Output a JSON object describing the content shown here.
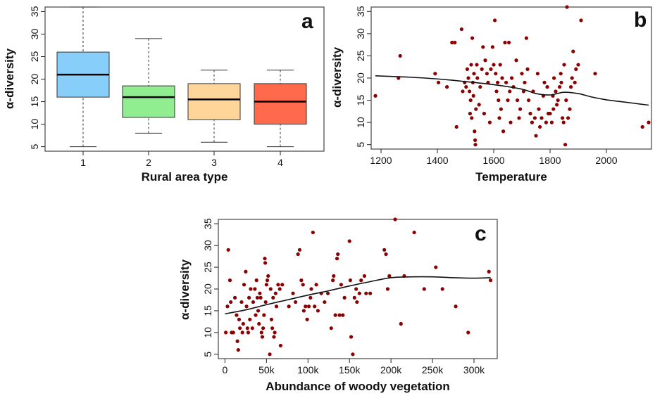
{
  "colors": {
    "point": "#8B0000",
    "line": "#111111",
    "box1": "#87CEFA",
    "box2": "#90EE90",
    "box3": "#FFD59A",
    "box4": "#FF6A4D"
  },
  "chart_data": [
    {
      "panel_label": "a",
      "type": "boxplot",
      "xlabel": "Rural area type",
      "ylabel": "α-diversity",
      "ylim": [
        4,
        36
      ],
      "yticks": [
        5,
        10,
        15,
        20,
        25,
        30,
        35
      ],
      "categories": [
        "1",
        "2",
        "3",
        "4"
      ],
      "boxes": [
        {
          "category": "1",
          "min": 5,
          "q1": 16,
          "median": 21,
          "q3": 26,
          "max": 36
        },
        {
          "category": "2",
          "min": 8,
          "q1": 11.5,
          "median": 16,
          "q3": 18.5,
          "max": 29
        },
        {
          "category": "3",
          "min": 6,
          "q1": 11,
          "median": 15.5,
          "q3": 19,
          "max": 22
        },
        {
          "category": "4",
          "min": 5,
          "q1": 10,
          "median": 15,
          "q3": 19,
          "max": 22
        }
      ]
    },
    {
      "panel_label": "b",
      "type": "scatter",
      "xlabel": "Temperature",
      "ylabel": "α-diversity",
      "xlim": [
        1165,
        2160
      ],
      "ylim": [
        4,
        36
      ],
      "xticks": [
        1200,
        1400,
        1600,
        1800,
        2000
      ],
      "yticks": [
        5,
        10,
        15,
        20,
        25,
        30,
        35
      ],
      "points": [
        [
          1180,
          16
        ],
        [
          1262,
          20
        ],
        [
          1268,
          25
        ],
        [
          1392,
          21
        ],
        [
          1404,
          19
        ],
        [
          1434,
          18
        ],
        [
          1452,
          28
        ],
        [
          1462,
          28
        ],
        [
          1468,
          9
        ],
        [
          1486,
          31
        ],
        [
          1490,
          17
        ],
        [
          1497,
          19
        ],
        [
          1502,
          18
        ],
        [
          1506,
          22
        ],
        [
          1510,
          20
        ],
        [
          1514,
          17
        ],
        [
          1516,
          12
        ],
        [
          1518,
          15
        ],
        [
          1520,
          23
        ],
        [
          1522,
          11
        ],
        [
          1524,
          29
        ],
        [
          1526,
          19
        ],
        [
          1528,
          16
        ],
        [
          1530,
          21
        ],
        [
          1532,
          8
        ],
        [
          1534,
          6
        ],
        [
          1535,
          5
        ],
        [
          1537,
          13
        ],
        [
          1540,
          23
        ],
        [
          1542,
          20
        ],
        [
          1548,
          14
        ],
        [
          1552,
          18
        ],
        [
          1558,
          22
        ],
        [
          1562,
          27
        ],
        [
          1566,
          12
        ],
        [
          1570,
          24
        ],
        [
          1576,
          21
        ],
        [
          1580,
          19
        ],
        [
          1586,
          10
        ],
        [
          1590,
          22
        ],
        [
          1596,
          27
        ],
        [
          1600,
          23
        ],
        [
          1604,
          33
        ],
        [
          1607,
          21
        ],
        [
          1610,
          17
        ],
        [
          1614,
          19
        ],
        [
          1617,
          15
        ],
        [
          1620,
          11
        ],
        [
          1623,
          23
        ],
        [
          1626,
          13
        ],
        [
          1630,
          20
        ],
        [
          1634,
          8
        ],
        [
          1640,
          28
        ],
        [
          1644,
          19
        ],
        [
          1650,
          15
        ],
        [
          1654,
          28
        ],
        [
          1657,
          17
        ],
        [
          1660,
          10
        ],
        [
          1664,
          20
        ],
        [
          1670,
          18
        ],
        [
          1680,
          24
        ],
        [
          1684,
          15
        ],
        [
          1690,
          11
        ],
        [
          1694,
          13
        ],
        [
          1700,
          21
        ],
        [
          1706,
          17
        ],
        [
          1710,
          19
        ],
        [
          1716,
          29
        ],
        [
          1720,
          22
        ],
        [
          1724,
          15
        ],
        [
          1730,
          12
        ],
        [
          1736,
          10
        ],
        [
          1740,
          17
        ],
        [
          1746,
          11
        ],
        [
          1750,
          7
        ],
        [
          1756,
          21
        ],
        [
          1760,
          13
        ],
        [
          1764,
          9
        ],
        [
          1770,
          11
        ],
        [
          1776,
          16
        ],
        [
          1780,
          19
        ],
        [
          1786,
          10
        ],
        [
          1790,
          18
        ],
        [
          1794,
          12
        ],
        [
          1800,
          12
        ],
        [
          1806,
          10
        ],
        [
          1810,
          16
        ],
        [
          1812,
          13
        ],
        [
          1814,
          20
        ],
        [
          1820,
          17
        ],
        [
          1824,
          14
        ],
        [
          1828,
          15
        ],
        [
          1834,
          18
        ],
        [
          1838,
          21
        ],
        [
          1840,
          19
        ],
        [
          1844,
          11
        ],
        [
          1848,
          10
        ],
        [
          1850,
          23
        ],
        [
          1854,
          5
        ],
        [
          1857,
          15
        ],
        [
          1860,
          36
        ],
        [
          1864,
          11
        ],
        [
          1870,
          13
        ],
        [
          1874,
          18
        ],
        [
          1878,
          20
        ],
        [
          1882,
          26
        ],
        [
          1888,
          19
        ],
        [
          1892,
          22
        ],
        [
          1900,
          23
        ],
        [
          1910,
          33
        ],
        [
          1960,
          21
        ],
        [
          2128,
          9
        ],
        [
          2150,
          10
        ]
      ],
      "smooth": {
        "x": [
          1180,
          1300,
          1400,
          1500,
          1600,
          1700,
          1750,
          1800,
          1850,
          1900,
          1950,
          2000,
          2050,
          2100,
          2150
        ],
        "y": [
          20.5,
          20.2,
          19.8,
          19.2,
          18.5,
          17.5,
          16.5,
          16.2,
          16.8,
          16.5,
          15.7,
          15.1,
          14.7,
          14.3,
          13.9
        ]
      }
    },
    {
      "panel_label": "c",
      "type": "scatter",
      "xlabel": "Abundance of woody vegetation",
      "ylabel": "α-diversity",
      "xlim": [
        -8000,
        328000
      ],
      "ylim": [
        4,
        36
      ],
      "xticks": [
        0,
        50000,
        100000,
        150000,
        200000,
        250000,
        300000
      ],
      "xticklabels": [
        "0",
        "50k",
        "100k",
        "150k",
        "200k",
        "250k",
        "300k"
      ],
      "yticks": [
        5,
        10,
        15,
        20,
        25,
        30,
        35
      ],
      "points": [
        [
          1000,
          10
        ],
        [
          3000,
          16
        ],
        [
          4000,
          29
        ],
        [
          6000,
          22
        ],
        [
          7000,
          17
        ],
        [
          8000,
          10
        ],
        [
          10000,
          10
        ],
        [
          12000,
          18
        ],
        [
          14000,
          14
        ],
        [
          15000,
          8
        ],
        [
          16000,
          6
        ],
        [
          17000,
          13
        ],
        [
          18000,
          11
        ],
        [
          20000,
          17
        ],
        [
          21000,
          10
        ],
        [
          22000,
          12
        ],
        [
          23000,
          21
        ],
        [
          25000,
          24
        ],
        [
          26000,
          16
        ],
        [
          27000,
          11
        ],
        [
          28000,
          10
        ],
        [
          29000,
          18
        ],
        [
          30000,
          13
        ],
        [
          31000,
          20
        ],
        [
          33000,
          11
        ],
        [
          34000,
          17
        ],
        [
          36000,
          20
        ],
        [
          37000,
          14
        ],
        [
          38000,
          22
        ],
        [
          39000,
          18
        ],
        [
          40000,
          15
        ],
        [
          41000,
          12
        ],
        [
          42000,
          19
        ],
        [
          43000,
          18
        ],
        [
          44000,
          10
        ],
        [
          45000,
          9
        ],
        [
          46000,
          11
        ],
        [
          47000,
          14
        ],
        [
          48000,
          27
        ],
        [
          48500,
          26
        ],
        [
          49000,
          17
        ],
        [
          50000,
          21
        ],
        [
          51000,
          22
        ],
        [
          52000,
          23
        ],
        [
          54000,
          5
        ],
        [
          55000,
          20
        ],
        [
          56000,
          13
        ],
        [
          57000,
          11
        ],
        [
          58000,
          18
        ],
        [
          59000,
          9
        ],
        [
          60000,
          10
        ],
        [
          61000,
          19
        ],
        [
          62000,
          16
        ],
        [
          64000,
          21
        ],
        [
          66000,
          20
        ],
        [
          67000,
          7
        ],
        [
          69000,
          21
        ],
        [
          77000,
          16
        ],
        [
          82000,
          19
        ],
        [
          85000,
          17
        ],
        [
          88000,
          28
        ],
        [
          90000,
          29
        ],
        [
          92000,
          22
        ],
        [
          94000,
          21
        ],
        [
          95000,
          15
        ],
        [
          97000,
          16
        ],
        [
          99000,
          13
        ],
        [
          101000,
          16
        ],
        [
          103000,
          18
        ],
        [
          104000,
          20
        ],
        [
          106000,
          33
        ],
        [
          108000,
          16
        ],
        [
          110000,
          21
        ],
        [
          112000,
          15
        ],
        [
          116000,
          19
        ],
        [
          120000,
          17
        ],
        [
          124000,
          19
        ],
        [
          128000,
          11
        ],
        [
          130000,
          22
        ],
        [
          131000,
          23
        ],
        [
          133000,
          14
        ],
        [
          135000,
          27
        ],
        [
          136000,
          28
        ],
        [
          138000,
          14
        ],
        [
          140000,
          21
        ],
        [
          142000,
          14
        ],
        [
          144000,
          18
        ],
        [
          150000,
          31
        ],
        [
          151000,
          22
        ],
        [
          152000,
          9
        ],
        [
          154000,
          5
        ],
        [
          156000,
          18
        ],
        [
          158000,
          20
        ],
        [
          159000,
          17
        ],
        [
          162000,
          19
        ],
        [
          164000,
          22
        ],
        [
          168000,
          23
        ],
        [
          170000,
          19
        ],
        [
          175000,
          19
        ],
        [
          192000,
          29
        ],
        [
          194000,
          28
        ],
        [
          196000,
          20
        ],
        [
          198000,
          23
        ],
        [
          205000,
          36
        ],
        [
          212000,
          12
        ],
        [
          216000,
          23
        ],
        [
          228000,
          33
        ],
        [
          240000,
          20
        ],
        [
          254000,
          25
        ],
        [
          262000,
          20
        ],
        [
          278000,
          16
        ],
        [
          293000,
          10
        ],
        [
          318000,
          24
        ],
        [
          320000,
          22
        ]
      ],
      "smooth": {
        "x": [
          0,
          25000,
          50000,
          75000,
          100000,
          125000,
          150000,
          175000,
          200000,
          225000,
          250000,
          275000,
          300000,
          320000
        ],
        "y": [
          14.3,
          15.2,
          16.4,
          17.5,
          18.6,
          19.6,
          20.7,
          21.7,
          22.6,
          22.8,
          22.8,
          22.6,
          22.5,
          22.6
        ]
      }
    }
  ]
}
